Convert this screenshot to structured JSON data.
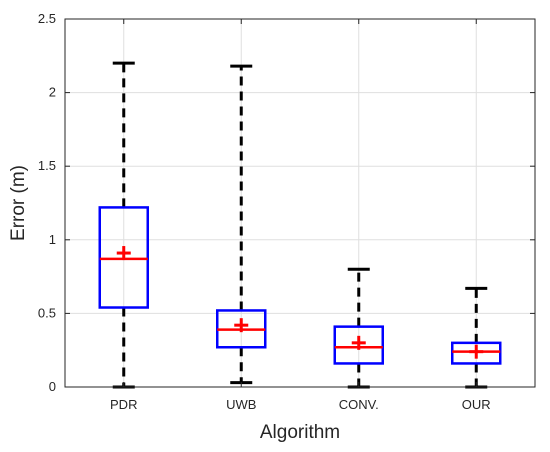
{
  "chart_data": {
    "type": "box",
    "xlabel": "Algorithm",
    "ylabel": "Error (m)",
    "ylim": [
      0,
      2.5
    ],
    "yticks": [
      0,
      0.5,
      1,
      1.5,
      2,
      2.5
    ],
    "ytick_labels": [
      "0",
      "0.5",
      "1",
      "1.5",
      "2",
      "2.5"
    ],
    "categories": [
      "PDR",
      "UWB",
      "CONV.",
      "OUR"
    ],
    "boxes": [
      {
        "category": "PDR",
        "min": 0.0,
        "q1": 0.54,
        "median": 0.87,
        "q3": 1.22,
        "max": 2.2,
        "mean": 0.91
      },
      {
        "category": "UWB",
        "min": 0.03,
        "q1": 0.27,
        "median": 0.39,
        "q3": 0.52,
        "max": 2.18,
        "mean": 0.42
      },
      {
        "category": "CONV.",
        "min": 0.0,
        "q1": 0.16,
        "median": 0.27,
        "q3": 0.41,
        "max": 0.8,
        "mean": 0.3
      },
      {
        "category": "OUR",
        "min": 0.0,
        "q1": 0.16,
        "median": 0.24,
        "q3": 0.3,
        "max": 0.67,
        "mean": 0.24
      }
    ],
    "grid": true,
    "colors": {
      "box": "#0000ff",
      "median": "#ff0000",
      "mean_marker": "#ff0000",
      "whisker": "#000000",
      "grid": "#dfdfdf",
      "axis": "#262626"
    }
  }
}
